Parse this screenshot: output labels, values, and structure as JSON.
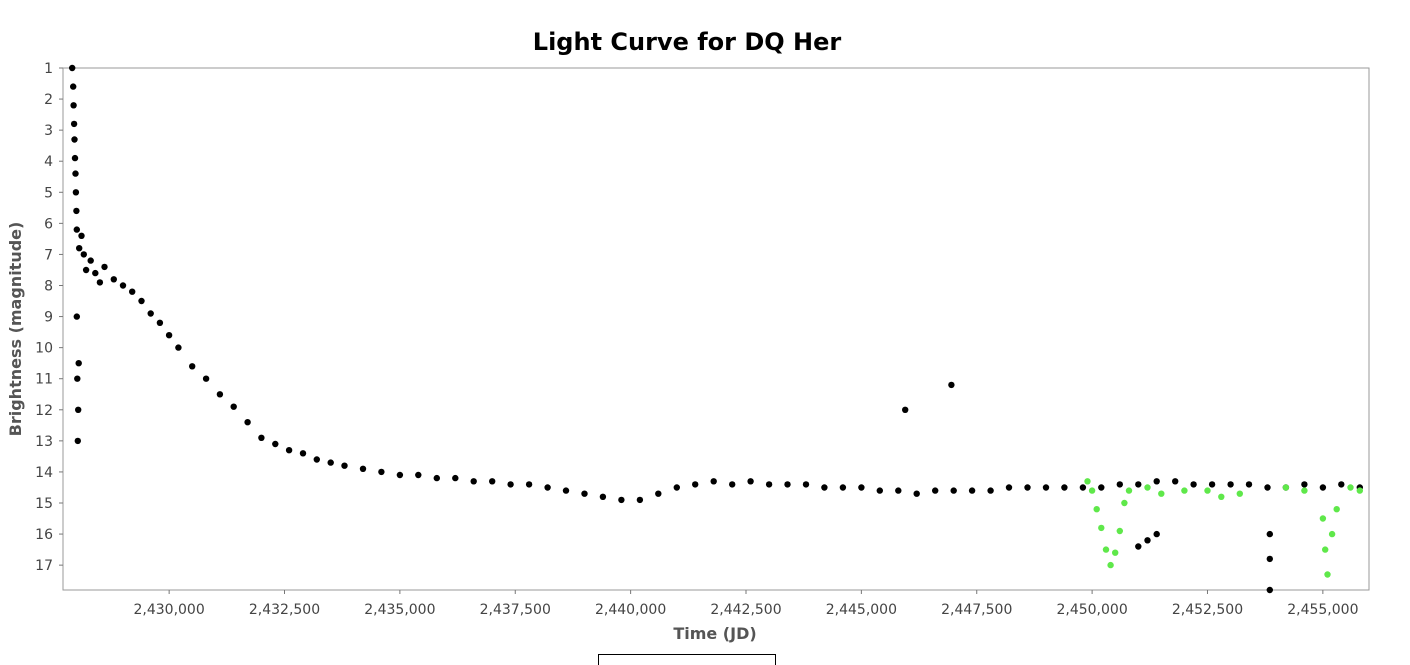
{
  "chart_data": {
    "type": "scatter",
    "title": "Light Curve for DQ Her",
    "xlabel": "Time (JD)",
    "ylabel": "Brightness (magnitude)",
    "xlim": [
      2427700,
      2456000
    ],
    "ylim": [
      1,
      17.8
    ],
    "y_inverted": true,
    "x_ticks": [
      2430000,
      2432500,
      2435000,
      2437500,
      2440000,
      2442500,
      2445000,
      2447500,
      2450000,
      2452500,
      2455000
    ],
    "x_tick_labels": [
      "2,430,000",
      "2,432,500",
      "2,435,000",
      "2,437,500",
      "2,440,000",
      "2,442,500",
      "2,445,000",
      "2,447,500",
      "2,450,000",
      "2,452,500",
      "2,455,000"
    ],
    "y_ticks": [
      1,
      2,
      3,
      4,
      5,
      6,
      7,
      8,
      9,
      10,
      11,
      12,
      13,
      14,
      15,
      16,
      17
    ],
    "y_tick_labels": [
      "1",
      "2",
      "3",
      "4",
      "5",
      "6",
      "7",
      "8",
      "9",
      "10",
      "11",
      "12",
      "13",
      "14",
      "15",
      "16",
      "17"
    ],
    "grid": false,
    "series": [
      {
        "color": "#000000",
        "points": [
          [
            2427900,
            1.0
          ],
          [
            2427920,
            1.6
          ],
          [
            2427930,
            2.2
          ],
          [
            2427940,
            2.8
          ],
          [
            2427950,
            3.3
          ],
          [
            2427960,
            3.9
          ],
          [
            2427970,
            4.4
          ],
          [
            2427980,
            5.0
          ],
          [
            2427990,
            5.6
          ],
          [
            2428000,
            6.2
          ],
          [
            2428050,
            6.8
          ],
          [
            2428100,
            6.4
          ],
          [
            2428150,
            7.0
          ],
          [
            2428200,
            7.5
          ],
          [
            2428300,
            7.2
          ],
          [
            2428400,
            7.6
          ],
          [
            2428500,
            7.9
          ],
          [
            2428600,
            7.4
          ],
          [
            2428000,
            9.0
          ],
          [
            2428010,
            11.0
          ],
          [
            2428020,
            13.0
          ],
          [
            2428030,
            12.0
          ],
          [
            2428040,
            10.5
          ],
          [
            2428800,
            7.8
          ],
          [
            2429000,
            8.0
          ],
          [
            2429200,
            8.2
          ],
          [
            2429400,
            8.5
          ],
          [
            2429600,
            8.9
          ],
          [
            2429800,
            9.2
          ],
          [
            2430000,
            9.6
          ],
          [
            2430200,
            10.0
          ],
          [
            2430500,
            10.6
          ],
          [
            2430800,
            11.0
          ],
          [
            2431100,
            11.5
          ],
          [
            2431400,
            11.9
          ],
          [
            2431700,
            12.4
          ],
          [
            2432000,
            12.9
          ],
          [
            2432300,
            13.1
          ],
          [
            2432600,
            13.3
          ],
          [
            2432900,
            13.4
          ],
          [
            2433200,
            13.6
          ],
          [
            2433500,
            13.7
          ],
          [
            2433800,
            13.8
          ],
          [
            2434200,
            13.9
          ],
          [
            2434600,
            14.0
          ],
          [
            2435000,
            14.1
          ],
          [
            2435400,
            14.1
          ],
          [
            2435800,
            14.2
          ],
          [
            2436200,
            14.2
          ],
          [
            2436600,
            14.3
          ],
          [
            2437000,
            14.3
          ],
          [
            2437400,
            14.4
          ],
          [
            2437800,
            14.4
          ],
          [
            2438200,
            14.5
          ],
          [
            2438600,
            14.6
          ],
          [
            2439000,
            14.7
          ],
          [
            2439400,
            14.8
          ],
          [
            2439800,
            14.9
          ],
          [
            2440200,
            14.9
          ],
          [
            2440600,
            14.7
          ],
          [
            2441000,
            14.5
          ],
          [
            2441400,
            14.4
          ],
          [
            2441800,
            14.3
          ],
          [
            2442200,
            14.4
          ],
          [
            2442600,
            14.3
          ],
          [
            2443000,
            14.4
          ],
          [
            2443400,
            14.4
          ],
          [
            2443800,
            14.4
          ],
          [
            2444200,
            14.5
          ],
          [
            2444600,
            14.5
          ],
          [
            2445000,
            14.5
          ],
          [
            2445400,
            14.6
          ],
          [
            2445800,
            14.6
          ],
          [
            2446200,
            14.7
          ],
          [
            2446600,
            14.6
          ],
          [
            2447000,
            14.6
          ],
          [
            2447400,
            14.6
          ],
          [
            2447800,
            14.6
          ],
          [
            2448200,
            14.5
          ],
          [
            2448600,
            14.5
          ],
          [
            2449000,
            14.5
          ],
          [
            2449400,
            14.5
          ],
          [
            2449800,
            14.5
          ],
          [
            2450200,
            14.5
          ],
          [
            2450600,
            14.4
          ],
          [
            2451000,
            14.4
          ],
          [
            2451400,
            14.3
          ],
          [
            2451800,
            14.3
          ],
          [
            2452200,
            14.4
          ],
          [
            2452600,
            14.4
          ],
          [
            2453000,
            14.4
          ],
          [
            2453400,
            14.4
          ],
          [
            2453800,
            14.5
          ],
          [
            2454200,
            14.5
          ],
          [
            2454600,
            14.4
          ],
          [
            2455000,
            14.5
          ],
          [
            2455400,
            14.4
          ],
          [
            2455800,
            14.5
          ],
          [
            2445950,
            12.0
          ],
          [
            2446950,
            11.2
          ],
          [
            2451000,
            16.4
          ],
          [
            2451200,
            16.2
          ],
          [
            2451400,
            16.0
          ],
          [
            2453850,
            17.8
          ],
          [
            2453850,
            16.8
          ],
          [
            2453850,
            16.0
          ]
        ]
      },
      {
        "color": "#5fe84a",
        "points": [
          [
            2449900,
            14.3
          ],
          [
            2450000,
            14.6
          ],
          [
            2450100,
            15.2
          ],
          [
            2450200,
            15.8
          ],
          [
            2450300,
            16.5
          ],
          [
            2450400,
            17.0
          ],
          [
            2450500,
            16.6
          ],
          [
            2450600,
            15.9
          ],
          [
            2450700,
            15.0
          ],
          [
            2450800,
            14.6
          ],
          [
            2451200,
            14.5
          ],
          [
            2451500,
            14.7
          ],
          [
            2452000,
            14.6
          ],
          [
            2452500,
            14.6
          ],
          [
            2452800,
            14.8
          ],
          [
            2453200,
            14.7
          ],
          [
            2454200,
            14.5
          ],
          [
            2454600,
            14.6
          ],
          [
            2455000,
            15.5
          ],
          [
            2455050,
            16.5
          ],
          [
            2455100,
            17.3
          ],
          [
            2455200,
            16.0
          ],
          [
            2455300,
            15.2
          ],
          [
            2455600,
            14.5
          ],
          [
            2455800,
            14.6
          ]
        ]
      }
    ]
  }
}
